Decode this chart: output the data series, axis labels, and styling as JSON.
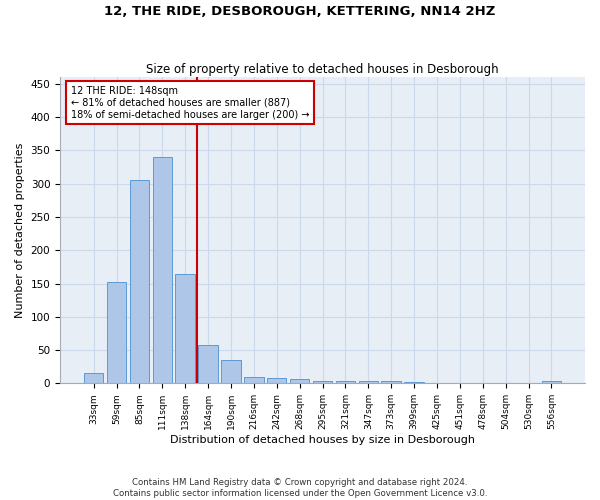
{
  "title": "12, THE RIDE, DESBOROUGH, KETTERING, NN14 2HZ",
  "subtitle": "Size of property relative to detached houses in Desborough",
  "xlabel": "Distribution of detached houses by size in Desborough",
  "ylabel": "Number of detached properties",
  "footer_line1": "Contains HM Land Registry data © Crown copyright and database right 2024.",
  "footer_line2": "Contains public sector information licensed under the Open Government Licence v3.0.",
  "annotation_line1": "12 THE RIDE: 148sqm",
  "annotation_line2": "← 81% of detached houses are smaller (887)",
  "annotation_line3": "18% of semi-detached houses are larger (200) →",
  "bar_color": "#aec6e8",
  "bar_edge_color": "#5b9bd5",
  "grid_color": "#ccd9ea",
  "background_color": "#e8eef5",
  "vline_color": "#cc0000",
  "categories": [
    "33sqm",
    "59sqm",
    "85sqm",
    "111sqm",
    "138sqm",
    "164sqm",
    "190sqm",
    "216sqm",
    "242sqm",
    "268sqm",
    "295sqm",
    "321sqm",
    "347sqm",
    "373sqm",
    "399sqm",
    "425sqm",
    "451sqm",
    "478sqm",
    "504sqm",
    "530sqm",
    "556sqm"
  ],
  "values": [
    15,
    153,
    305,
    340,
    165,
    57,
    35,
    10,
    8,
    7,
    4,
    3,
    3,
    3,
    2,
    0,
    0,
    0,
    0,
    0,
    4
  ],
  "ylim": [
    0,
    460
  ],
  "yticks": [
    0,
    50,
    100,
    150,
    200,
    250,
    300,
    350,
    400,
    450
  ]
}
